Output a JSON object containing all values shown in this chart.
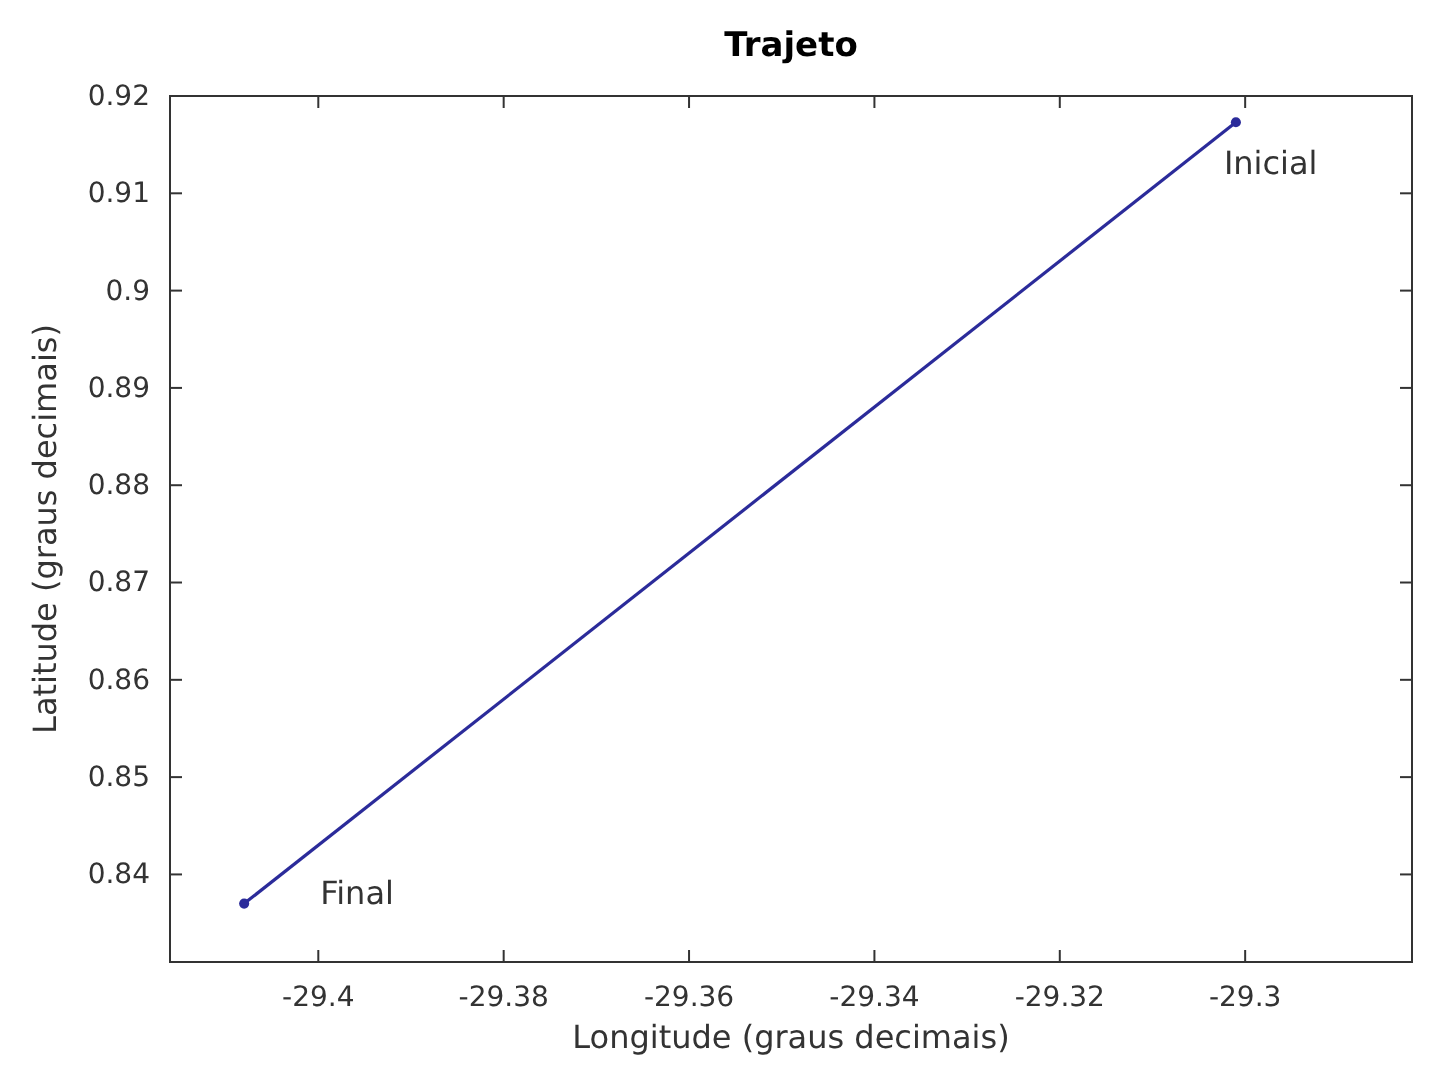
{
  "chart_data": {
    "type": "line",
    "title": "Trajeto",
    "xlabel": "Longitude (graus decimais)",
    "ylabel": "Latitude (graus decimais)",
    "x": [
      -29.408,
      -29.301
    ],
    "series": [
      {
        "color": "#2b2b9a",
        "values": [
          0.837,
          0.9173
        ]
      }
    ],
    "annotations": [
      {
        "text": "Final",
        "x": -29.408,
        "y": 0.837
      },
      {
        "text": "Inicial",
        "x": -29.301,
        "y": 0.9173
      }
    ],
    "xlim": [
      -29.416,
      -29.282
    ],
    "ylim": [
      0.831,
      0.92
    ],
    "xticks": [
      -29.4,
      -29.38,
      -29.36,
      -29.34,
      -29.32,
      -29.3
    ],
    "yticks": [
      0.84,
      0.85,
      0.86,
      0.87,
      0.88,
      0.89,
      0.9,
      0.91,
      0.92
    ],
    "marker": "circle",
    "line_style": "solid",
    "grid": false
  }
}
